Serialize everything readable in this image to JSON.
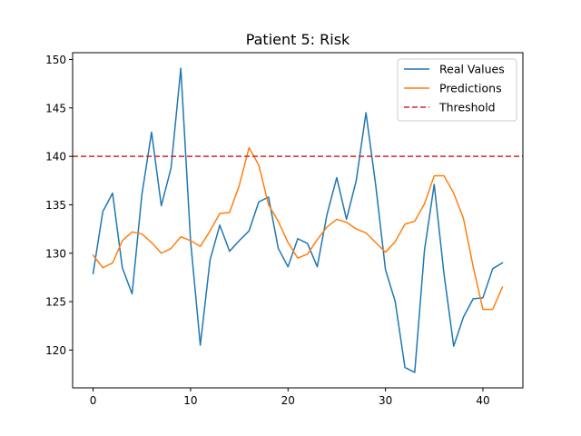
{
  "chart_data": {
    "type": "line",
    "title": "Patient 5: Risk",
    "xlabel": "",
    "ylabel": "",
    "xlim": [
      -2.1,
      44.1
    ],
    "ylim": [
      116.1,
      150.7
    ],
    "xticks": [
      0,
      10,
      20,
      30,
      40
    ],
    "yticks": [
      120,
      125,
      130,
      135,
      140,
      145,
      150
    ],
    "grid": false,
    "legend": "top-right",
    "threshold": {
      "name": "Threshold",
      "value": 140,
      "color": "#d62728",
      "style": "dashed"
    },
    "series": [
      {
        "name": "Real Values",
        "color": "#1f77b4",
        "x": [
          0,
          1,
          2,
          3,
          4,
          5,
          6,
          7,
          8,
          9,
          10,
          11,
          12,
          13,
          14,
          15,
          16,
          17,
          18,
          19,
          20,
          21,
          22,
          23,
          24,
          25,
          26,
          27,
          28,
          29,
          30,
          31,
          32,
          33,
          34,
          35,
          36,
          37,
          38,
          39,
          40,
          41,
          42
        ],
        "values": [
          127.9,
          134.3,
          136.2,
          128.5,
          125.8,
          136.0,
          142.5,
          134.9,
          138.8,
          149.1,
          131.3,
          120.5,
          129.3,
          132.9,
          130.2,
          131.3,
          132.3,
          135.3,
          135.8,
          130.5,
          128.6,
          131.5,
          131.0,
          128.6,
          134.0,
          137.8,
          133.5,
          137.5,
          144.5,
          137.0,
          128.3,
          125.0,
          118.2,
          117.7,
          130.3,
          137.1,
          127.9,
          120.4,
          123.4,
          125.3,
          125.4,
          128.4,
          129.0
        ]
      },
      {
        "name": "Predictions",
        "color": "#ff7f0e",
        "x": [
          0,
          1,
          2,
          3,
          4,
          5,
          6,
          7,
          8,
          9,
          10,
          11,
          12,
          13,
          14,
          15,
          16,
          17,
          18,
          19,
          20,
          21,
          22,
          23,
          24,
          25,
          26,
          27,
          28,
          29,
          30,
          31,
          32,
          33,
          34,
          35,
          36,
          37,
          38,
          39,
          40,
          41,
          42
        ],
        "values": [
          129.8,
          128.5,
          129.0,
          131.3,
          132.2,
          132.0,
          131.1,
          130.0,
          130.5,
          131.7,
          131.3,
          130.7,
          132.3,
          134.1,
          134.2,
          137.0,
          140.9,
          139.1,
          135.0,
          133.3,
          131.1,
          129.5,
          129.9,
          131.4,
          132.7,
          133.5,
          133.2,
          132.5,
          132.1,
          131.1,
          130.1,
          131.2,
          133.0,
          133.3,
          135.1,
          138.0,
          138.0,
          136.2,
          133.6,
          128.6,
          124.2,
          124.2,
          126.5
        ]
      }
    ]
  }
}
